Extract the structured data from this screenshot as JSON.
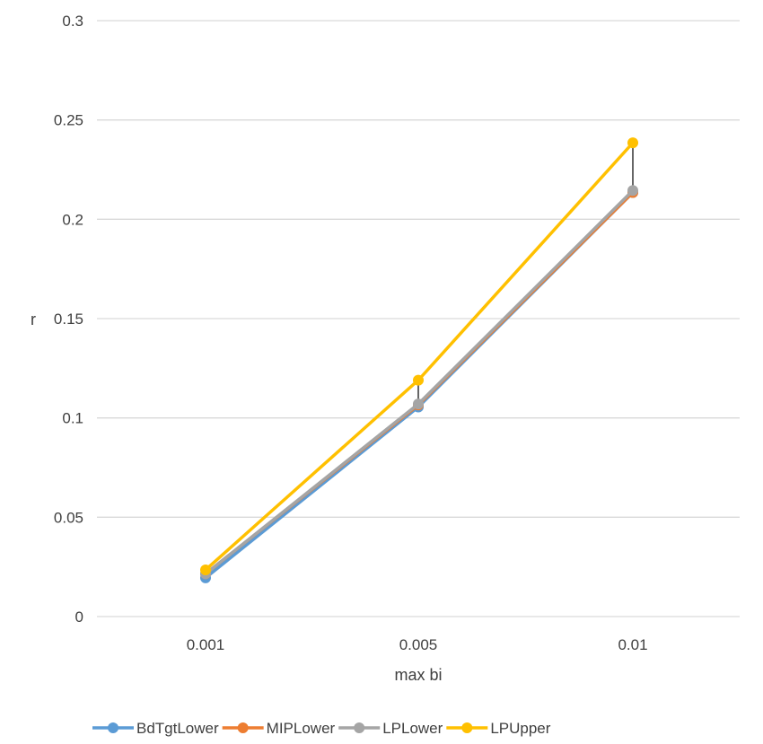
{
  "chart_data": {
    "type": "line",
    "title": "",
    "xlabel": "max bi",
    "ylabel": "r",
    "categories": [
      "0.001",
      "0.005",
      "0.01"
    ],
    "ylim": [
      0,
      0.3
    ],
    "yticks": [
      0,
      0.05,
      0.1,
      0.15,
      0.2,
      0.25,
      0.3
    ],
    "ytick_labels": [
      "0",
      "0.05",
      "0.1",
      "0.15",
      "0.2",
      "0.25",
      "0.3"
    ],
    "grid": true,
    "legend_position": "bottom",
    "series": [
      {
        "name": "BdTgtLower",
        "color": "#5B9BD5",
        "values": [
          0.0195,
          0.1055,
          0.2135
        ]
      },
      {
        "name": "MIPLower",
        "color": "#ED7D31",
        "values": [
          0.0215,
          0.1065,
          0.2135
        ]
      },
      {
        "name": "LPLower",
        "color": "#A5A5A5",
        "values": [
          0.0215,
          0.107,
          0.2145
        ]
      },
      {
        "name": "LPUpper",
        "color": "#FFC000",
        "values": [
          0.0235,
          0.119,
          0.2385
        ]
      }
    ],
    "high_low_lines": true,
    "high_low_color": "#000000"
  }
}
